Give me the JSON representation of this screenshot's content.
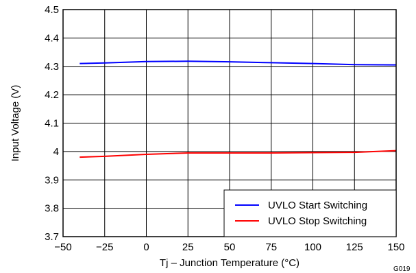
{
  "chart_data": {
    "type": "line",
    "title": "",
    "xlabel": "Tj – Junction Temperature (°C)",
    "ylabel": "Input Voltage (V)",
    "xlim": [
      -50,
      150
    ],
    "ylim": [
      3.7,
      4.5
    ],
    "xticks": [
      -50,
      -25,
      0,
      25,
      50,
      75,
      100,
      125,
      150
    ],
    "xtick_labels": [
      "−50",
      "−25",
      "0",
      "25",
      "50",
      "75",
      "100",
      "125",
      "150"
    ],
    "yticks": [
      3.7,
      3.8,
      3.9,
      4.0,
      4.1,
      4.2,
      4.3,
      4.4,
      4.5
    ],
    "ytick_labels": [
      "3.7",
      "3.8",
      "3.9",
      "4",
      "4.1",
      "4.2",
      "4.3",
      "4.4",
      "4.5"
    ],
    "grid": true,
    "legend_position": "bottom-right",
    "series": [
      {
        "name": "UVLO Start Switching",
        "color": "#0000ff",
        "x": [
          -40,
          -25,
          0,
          25,
          50,
          75,
          100,
          125,
          150
        ],
        "values": [
          4.31,
          4.312,
          4.317,
          4.318,
          4.316,
          4.313,
          4.31,
          4.306,
          4.305
        ]
      },
      {
        "name": "UVLO Stop Switching",
        "color": "#ff0000",
        "x": [
          -40,
          -25,
          0,
          25,
          50,
          75,
          100,
          125,
          150
        ],
        "values": [
          3.98,
          3.983,
          3.99,
          3.995,
          3.995,
          3.995,
          3.996,
          3.997,
          4.003
        ]
      }
    ]
  },
  "figure_id": "G019"
}
